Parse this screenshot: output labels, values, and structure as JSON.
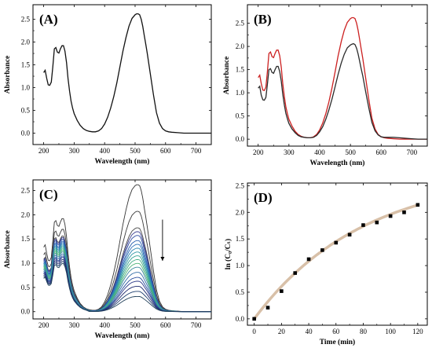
{
  "chart_data": [
    {
      "panel": "(A)",
      "type": "line",
      "xlabel": "Wavelength (nm)",
      "ylabel": "Absorbance",
      "xlim": [
        165,
        750
      ],
      "ylim": [
        -0.25,
        2.82
      ],
      "xticks": [
        200,
        300,
        400,
        500,
        600,
        700
      ],
      "yticks": [
        0.0,
        0.5,
        1.0,
        1.5,
        2.0,
        2.5
      ],
      "series": [
        {
          "color": "#111111",
          "x": [
            200,
            205,
            210,
            215,
            220,
            225,
            230,
            235,
            240,
            245,
            250,
            255,
            260,
            265,
            270,
            275,
            280,
            285,
            290,
            295,
            300,
            310,
            320,
            330,
            340,
            350,
            360,
            370,
            380,
            390,
            400,
            410,
            420,
            430,
            440,
            450,
            460,
            470,
            480,
            490,
            500,
            505,
            510,
            515,
            520,
            525,
            530,
            535,
            540,
            550,
            560,
            570,
            580,
            590,
            600,
            610,
            620,
            640,
            660,
            680,
            700,
            720,
            750
          ],
          "y": [
            1.33,
            1.38,
            1.2,
            1.06,
            1.05,
            1.12,
            1.45,
            1.85,
            1.88,
            1.78,
            1.76,
            1.85,
            1.92,
            1.92,
            1.8,
            1.55,
            1.2,
            0.92,
            0.7,
            0.55,
            0.43,
            0.28,
            0.17,
            0.1,
            0.06,
            0.04,
            0.03,
            0.03,
            0.05,
            0.1,
            0.2,
            0.35,
            0.55,
            0.8,
            1.1,
            1.45,
            1.8,
            2.1,
            2.35,
            2.52,
            2.6,
            2.62,
            2.62,
            2.6,
            2.5,
            2.35,
            2.15,
            1.95,
            1.75,
            1.3,
            0.85,
            0.45,
            0.22,
            0.1,
            0.05,
            0.03,
            0.02,
            0.01,
            0.0,
            0.0,
            0.0,
            0.0,
            0.0
          ]
        }
      ]
    },
    {
      "panel": "(B)",
      "type": "line",
      "xlabel": "Wavelength (nm)",
      "ylabel": "Absorbance",
      "xlim": [
        165,
        750
      ],
      "ylim": [
        -0.15,
        2.9
      ],
      "xticks": [
        200,
        300,
        400,
        500,
        600,
        700
      ],
      "yticks": [
        0.0,
        0.5,
        1.0,
        1.5,
        2.0,
        2.5
      ],
      "series": [
        {
          "color": "#cc2020",
          "x": [
            200,
            205,
            210,
            215,
            220,
            225,
            230,
            235,
            240,
            245,
            250,
            255,
            260,
            265,
            270,
            275,
            280,
            285,
            290,
            295,
            300,
            310,
            320,
            330,
            340,
            350,
            360,
            370,
            380,
            390,
            400,
            410,
            420,
            430,
            440,
            450,
            460,
            470,
            480,
            490,
            500,
            505,
            510,
            515,
            520,
            525,
            530,
            535,
            540,
            550,
            560,
            570,
            580,
            590,
            600,
            610,
            620,
            640,
            660,
            680,
            700,
            720,
            750
          ],
          "y": [
            1.33,
            1.38,
            1.2,
            1.06,
            1.05,
            1.12,
            1.45,
            1.85,
            1.88,
            1.78,
            1.76,
            1.85,
            1.92,
            1.92,
            1.8,
            1.55,
            1.2,
            0.92,
            0.7,
            0.55,
            0.43,
            0.28,
            0.17,
            0.1,
            0.06,
            0.04,
            0.03,
            0.03,
            0.05,
            0.1,
            0.2,
            0.35,
            0.55,
            0.8,
            1.1,
            1.45,
            1.8,
            2.1,
            2.35,
            2.52,
            2.6,
            2.62,
            2.62,
            2.6,
            2.5,
            2.35,
            2.15,
            1.95,
            1.75,
            1.3,
            0.85,
            0.45,
            0.22,
            0.1,
            0.05,
            0.03,
            0.02,
            0.01,
            0.0,
            0.0,
            0.0,
            0.0,
            0.0
          ]
        },
        {
          "color": "#2a2a2a",
          "x": [
            200,
            205,
            210,
            215,
            220,
            225,
            230,
            235,
            240,
            245,
            250,
            255,
            260,
            265,
            270,
            275,
            280,
            285,
            290,
            295,
            300,
            310,
            320,
            330,
            340,
            350,
            360,
            370,
            380,
            390,
            400,
            410,
            420,
            430,
            440,
            450,
            460,
            470,
            480,
            490,
            500,
            505,
            510,
            515,
            520,
            525,
            530,
            535,
            540,
            550,
            560,
            570,
            580,
            590,
            600,
            610,
            620,
            640,
            660,
            680,
            700,
            720,
            750
          ],
          "y": [
            1.1,
            1.14,
            0.95,
            0.85,
            0.84,
            0.9,
            1.18,
            1.5,
            1.52,
            1.44,
            1.42,
            1.5,
            1.57,
            1.57,
            1.46,
            1.25,
            0.97,
            0.74,
            0.56,
            0.44,
            0.34,
            0.22,
            0.14,
            0.08,
            0.05,
            0.04,
            0.03,
            0.03,
            0.04,
            0.08,
            0.16,
            0.27,
            0.43,
            0.63,
            0.86,
            1.13,
            1.4,
            1.64,
            1.83,
            1.97,
            2.03,
            2.05,
            2.06,
            2.04,
            1.96,
            1.84,
            1.68,
            1.52,
            1.37,
            1.01,
            0.67,
            0.36,
            0.18,
            0.09,
            0.05,
            0.04,
            0.04,
            0.04,
            0.03,
            0.02,
            0.01,
            0.0,
            0.0
          ]
        }
      ]
    },
    {
      "panel": "(C)",
      "type": "line",
      "xlabel": "Wavelength (nm)",
      "ylabel": "Absorbance",
      "xlim": [
        165,
        750
      ],
      "ylim": [
        -0.15,
        2.72
      ],
      "xticks": [
        200,
        300,
        400,
        500,
        600,
        700
      ],
      "yticks": [
        0.0,
        0.5,
        1.0,
        1.5,
        2.0,
        2.5
      ],
      "trend_arrow": "down",
      "base_curve": {
        "x": [
          200,
          205,
          210,
          215,
          220,
          225,
          230,
          235,
          240,
          245,
          250,
          255,
          260,
          265,
          270,
          275,
          280,
          285,
          290,
          295,
          300,
          310,
          320,
          330,
          340,
          350,
          360,
          370,
          380,
          390,
          400,
          410,
          420,
          430,
          440,
          450,
          460,
          470,
          480,
          490,
          500,
          505,
          510,
          515,
          520,
          525,
          530,
          535,
          540,
          550,
          560,
          570,
          580,
          590,
          600,
          610,
          620,
          640,
          660,
          680,
          700,
          720,
          750
        ],
        "y": [
          1.33,
          1.38,
          1.2,
          1.06,
          1.05,
          1.12,
          1.45,
          1.85,
          1.88,
          1.78,
          1.76,
          1.85,
          1.92,
          1.92,
          1.8,
          1.55,
          1.2,
          0.92,
          0.7,
          0.55,
          0.43,
          0.28,
          0.17,
          0.1,
          0.06,
          0.04,
          0.03,
          0.03,
          0.05,
          0.1,
          0.2,
          0.35,
          0.55,
          0.8,
          1.1,
          1.45,
          1.8,
          2.1,
          2.35,
          2.52,
          2.6,
          2.62,
          2.62,
          2.6,
          2.5,
          2.35,
          2.15,
          1.95,
          1.75,
          1.3,
          0.85,
          0.45,
          0.22,
          0.1,
          0.05,
          0.03,
          0.02,
          0.01,
          0.0,
          0.0,
          0.0,
          0.0,
          0.0
        ]
      },
      "series_peak_scale": [
        1.0,
        0.79,
        0.66,
        0.63,
        0.6,
        0.56,
        0.53,
        0.5,
        0.47,
        0.44,
        0.41,
        0.38,
        0.35,
        0.31,
        0.27,
        0.24,
        0.2,
        0.16,
        0.12
      ],
      "series_colors": [
        "#333333",
        "#3a3a3a",
        "#4a4a4a",
        "#3b3f8f",
        "#2d4aa0",
        "#275fb0",
        "#2a6fb8",
        "#2b85b0",
        "#2f98a4",
        "#37a494",
        "#42ad84",
        "#4fb578",
        "#3c8a9c",
        "#2d6aa4",
        "#264c9c",
        "#2d3a88",
        "#1e2a6e",
        "#1d3d6e",
        "#22405a"
      ]
    },
    {
      "panel": "(D)",
      "type": "scatter",
      "xlabel": "Time (min)",
      "ylabel": "ln (C₀/Cₜ)",
      "xlim": [
        -5,
        127
      ],
      "ylim": [
        -0.12,
        2.55
      ],
      "xticks": [
        0,
        20,
        40,
        60,
        80,
        100,
        120
      ],
      "yticks": [
        0.0,
        0.5,
        1.0,
        1.5,
        2.0,
        2.5
      ],
      "x": [
        0,
        10,
        20,
        30,
        40,
        50,
        60,
        70,
        80,
        90,
        100,
        110,
        120
      ],
      "y": [
        0.0,
        0.21,
        0.52,
        0.86,
        1.12,
        1.29,
        1.43,
        1.58,
        1.76,
        1.81,
        1.93,
        2.0,
        2.14
      ],
      "fit_color": "#d8c0a8"
    }
  ]
}
